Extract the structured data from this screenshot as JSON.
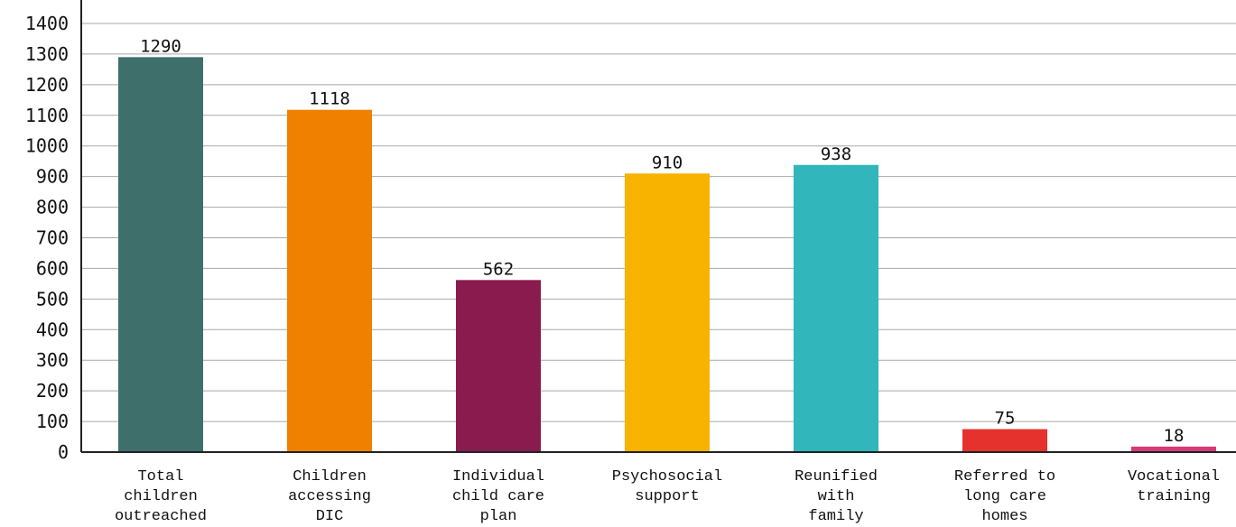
{
  "chart_data": {
    "type": "bar",
    "categories": [
      [
        "Total",
        "children",
        "outreached"
      ],
      [
        "Children",
        "accessing",
        "DIC"
      ],
      [
        "Individual",
        "child care",
        "plan"
      ],
      [
        "Psychosocial",
        "support"
      ],
      [
        "Reunified",
        "with",
        "family"
      ],
      [
        "Referred to",
        "long care",
        "homes"
      ],
      [
        "Vocational",
        "training"
      ]
    ],
    "values": [
      1290,
      1118,
      562,
      910,
      938,
      75,
      18
    ],
    "data_labels": [
      "1290",
      "1118",
      "562",
      "910",
      "938",
      "75",
      "18"
    ],
    "colors": [
      "#3f6f6b",
      "#f08000",
      "#8a1b4f",
      "#f8b300",
      "#31b6bb",
      "#e5322d",
      "#d63a78"
    ],
    "ylim": [
      0,
      1400
    ],
    "yticks": [
      0,
      100,
      200,
      300,
      400,
      500,
      600,
      700,
      800,
      900,
      1000,
      1100,
      1200,
      1300,
      1400
    ],
    "grid": true,
    "title": "",
    "xlabel": "",
    "ylabel": ""
  }
}
